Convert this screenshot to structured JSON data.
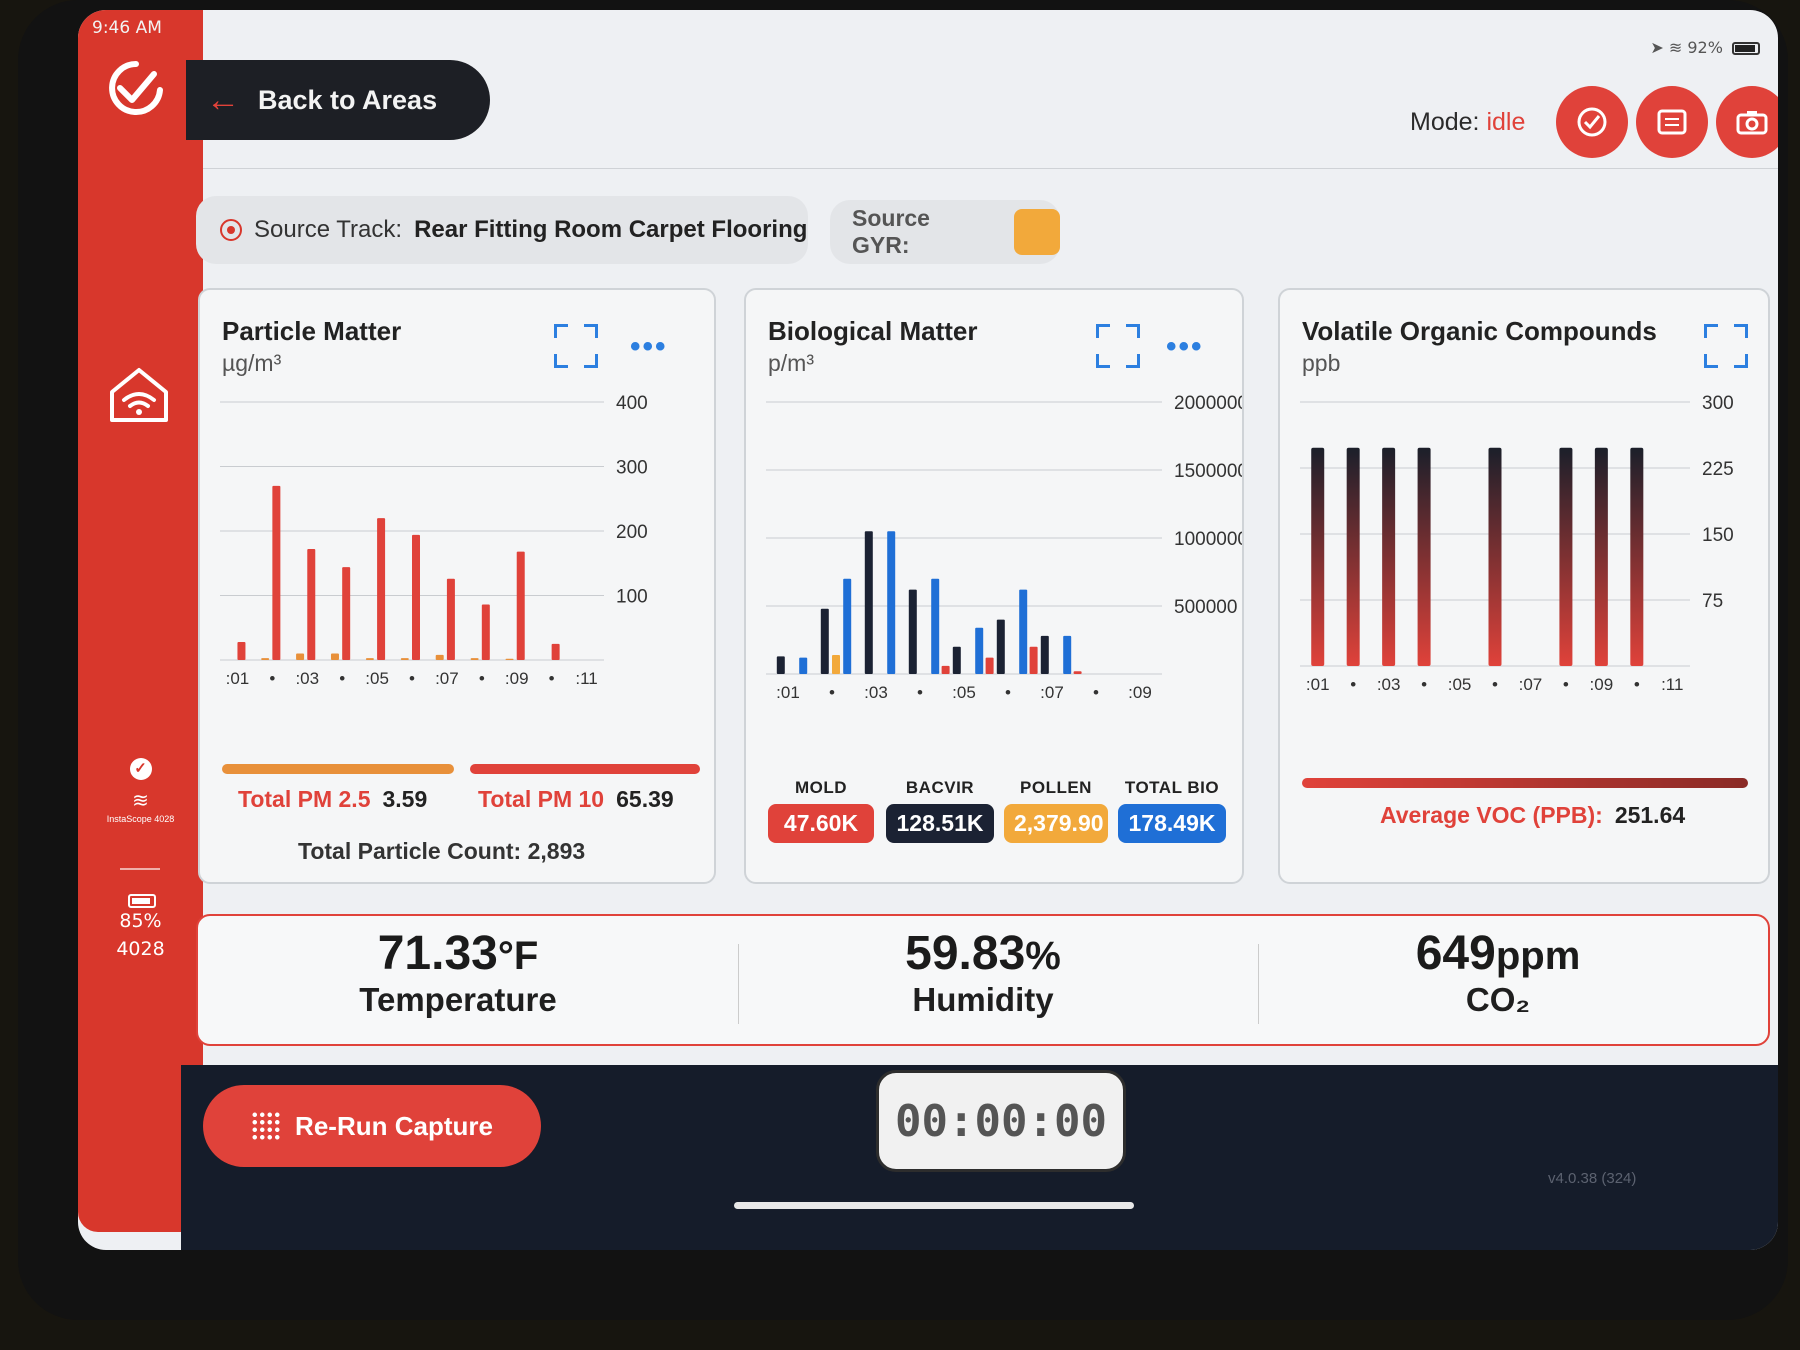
{
  "status": {
    "time": "9:46 AM",
    "battery": "92%"
  },
  "sidebar": {
    "device_name": "InstaScope 4028",
    "battery": "85%",
    "device_id": "4028"
  },
  "header": {
    "back_label": "Back to Areas",
    "mode_label": "Mode:",
    "mode_value": "idle"
  },
  "source": {
    "track_label": "Source Track:",
    "track_value": "Rear Fitting Room Carpet Flooring",
    "gyr_label": "Source GYR:",
    "gyr_color": "#f2a93b"
  },
  "particle": {
    "title": "Particle Matter",
    "unit": "µg/m³",
    "pm25_label": "Total PM 2.5",
    "pm25_value": "3.59",
    "pm10_label": "Total PM 10",
    "pm10_value": "65.39",
    "count_label": "Total Particle Count:",
    "count_value": "2,893"
  },
  "bio": {
    "title": "Biological Matter",
    "unit": "p/m³",
    "badges": [
      {
        "label": "MOLD",
        "value": "47.60K",
        "color": "#e0423a"
      },
      {
        "label": "BACVIR",
        "value": "128.51K",
        "color": "#1b2233"
      },
      {
        "label": "POLLEN",
        "value": "2,379.90",
        "color": "#f2a93b"
      },
      {
        "label": "TOTAL BIO",
        "value": "178.49K",
        "color": "#1f6fd6"
      }
    ]
  },
  "voc": {
    "title": "Volatile Organic Compounds",
    "unit": "ppb",
    "avg_label": "Average VOC (PPB):",
    "avg_value": "251.64"
  },
  "env": {
    "temperature_value": "71.33",
    "temperature_unit": "°F",
    "temperature_label": "Temperature",
    "humidity_value": "59.83",
    "humidity_unit": "%",
    "humidity_label": "Humidity",
    "co2_value": "649",
    "co2_unit": "ppm",
    "co2_label": "CO₂"
  },
  "footer": {
    "rerun_label": "Re-Run Capture",
    "timer": "00:00:00",
    "version": "v4.0.38 (324)"
  },
  "chart_data": [
    {
      "type": "bar",
      "title": "Particle Matter",
      "ylabel": "µg/m³",
      "ylim": [
        0,
        400
      ],
      "yticks": [
        100,
        200,
        300,
        400
      ],
      "x": [
        ":01",
        ":02",
        ":03",
        ":04",
        ":05",
        ":06",
        ":07",
        ":08",
        ":09",
        ":10",
        ":11"
      ],
      "xticks": [
        ":01",
        "•",
        ":03",
        "•",
        ":05",
        "•",
        ":07",
        "•",
        ":09",
        "•",
        ":11"
      ],
      "series": [
        {
          "name": "PM 2.5",
          "color": "#e8903a",
          "values": [
            0,
            3,
            10,
            10,
            3,
            3,
            8,
            3,
            2,
            0,
            0
          ]
        },
        {
          "name": "PM 10",
          "color": "#e0423a",
          "values": [
            28,
            270,
            172,
            144,
            220,
            194,
            126,
            86,
            168,
            25,
            0
          ]
        }
      ]
    },
    {
      "type": "bar",
      "title": "Biological Matter",
      "ylabel": "p/m³",
      "ylim": [
        0,
        2000000
      ],
      "yticks": [
        500000,
        1000000,
        1500000,
        2000000
      ],
      "x": [
        ":01",
        ":02",
        ":03",
        ":04",
        ":05",
        ":06",
        ":07",
        ":08",
        ":09"
      ],
      "xticks": [
        ":01",
        "•",
        ":03",
        "•",
        ":05",
        "•",
        ":07",
        "•",
        ":09"
      ],
      "series": [
        {
          "name": "MOLD",
          "color": "#e0423a",
          "values": [
            0,
            0,
            0,
            0,
            60000,
            120000,
            200000,
            20000,
            0
          ]
        },
        {
          "name": "BACVIR",
          "color": "#1b2233",
          "values": [
            130000,
            480000,
            1050000,
            620000,
            200000,
            400000,
            280000,
            0,
            0
          ]
        },
        {
          "name": "POLLEN",
          "color": "#f2a93b",
          "values": [
            0,
            140000,
            0,
            0,
            0,
            0,
            0,
            0,
            0
          ]
        },
        {
          "name": "TOTAL BIO",
          "color": "#1f6fd6",
          "values": [
            120000,
            700000,
            1050000,
            700000,
            340000,
            620000,
            280000,
            0,
            0
          ]
        }
      ]
    },
    {
      "type": "bar",
      "title": "Volatile Organic Compounds",
      "ylabel": "ppb",
      "ylim": [
        0,
        300
      ],
      "yticks": [
        75,
        150,
        225,
        300
      ],
      "x": [
        ":01",
        ":02",
        ":03",
        ":04",
        ":05",
        ":06",
        ":07",
        ":08",
        ":09",
        ":10",
        ":11"
      ],
      "xticks": [
        ":01",
        "•",
        ":03",
        "•",
        ":05",
        "•",
        ":07",
        "•",
        ":09",
        "•",
        ":11"
      ],
      "values": [
        248,
        248,
        248,
        248,
        0,
        248,
        0,
        248,
        248,
        248,
        0
      ]
    }
  ]
}
